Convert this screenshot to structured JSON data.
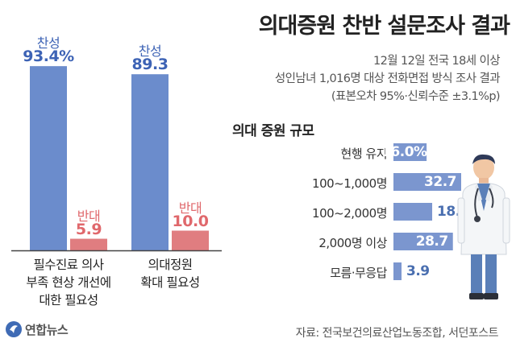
{
  "title": "의대증원 찬반 설문조사 결과",
  "subtitle_lines": [
    "12월 12일 전국 18세 이상",
    "성인남녀 1,016명 대상 전화면접 방식 조사 결과",
    "(표본오차 95%·신뢰수준 ±3.1%p)"
  ],
  "source": "자료: 전국보건의료산업노동조합, 서던포스트",
  "logo_text": "연합뉴스",
  "colors": {
    "favor": "#6b8ccc",
    "oppose": "#e07d80",
    "favor_text": "#3d63b5",
    "oppose_text": "#e0686c",
    "hbar": "#7b96cf",
    "baseline": "#444444"
  },
  "chart_data": [
    {
      "type": "bar",
      "categories": [
        "필수진료 의사 부족 현상 개선에 대한 필요성",
        "의대정원 확대 필요성"
      ],
      "category_lines": [
        [
          "필수진료 의사",
          "부족 현상 개선에",
          "대한 필요성"
        ],
        [
          "의대정원",
          "확대 필요성"
        ]
      ],
      "series": [
        {
          "name": "찬성",
          "values": [
            93.4,
            89.3
          ],
          "labels": [
            "93.4%",
            "89.3"
          ]
        },
        {
          "name": "반대",
          "values": [
            5.9,
            10.0
          ],
          "labels": [
            "5.9",
            "10.0"
          ]
        }
      ],
      "ylim": [
        0,
        100
      ]
    },
    {
      "type": "bar",
      "orientation": "horizontal",
      "title": "의대 증원 규모",
      "categories": [
        "현행 유지",
        "100~1,000명",
        "100~2,000명",
        "2,000명 이상",
        "모름·무응답"
      ],
      "values": [
        16.0,
        32.7,
        18.7,
        28.7,
        3.9
      ],
      "labels": [
        "16.0%",
        "32.7",
        "18.7",
        "28.7",
        "3.9"
      ],
      "xlim": [
        0,
        32.7
      ]
    }
  ]
}
